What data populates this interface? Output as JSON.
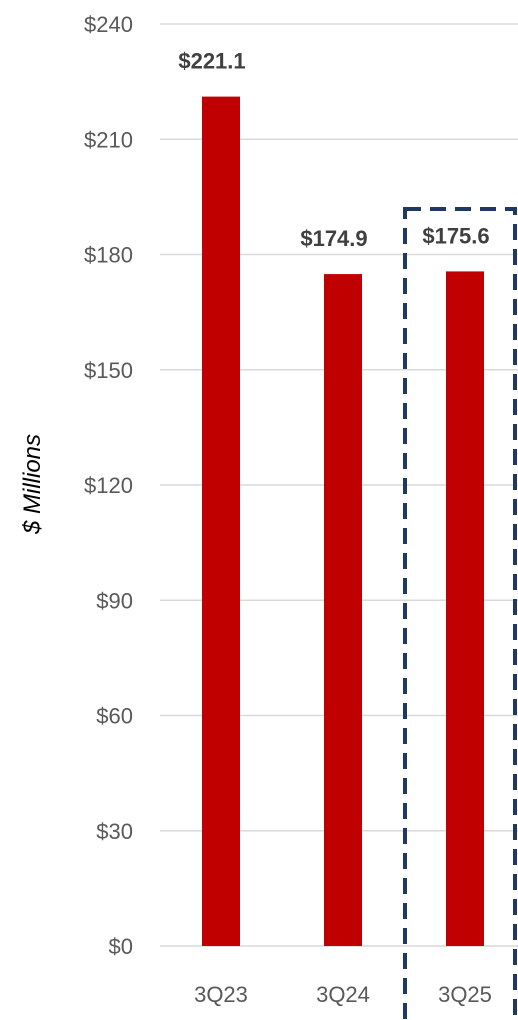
{
  "chart_data": {
    "type": "bar",
    "categories": [
      "3Q23",
      "3Q24",
      "3Q25"
    ],
    "values": [
      221.1,
      174.9,
      175.6
    ],
    "data_labels": [
      "$221.1",
      "$174.9",
      "$175.6"
    ],
    "ylabel": "$ Millions",
    "ylim": [
      0,
      240
    ],
    "yticks": [
      0,
      30,
      60,
      90,
      120,
      150,
      180,
      210,
      240
    ],
    "ytick_labels": [
      "$0",
      "$30",
      "$60",
      "$90",
      "$120",
      "$150",
      "$180",
      "$210",
      "$240"
    ],
    "grid": true,
    "highlighted_category": "3Q25",
    "colors": {
      "bar": "#c00000",
      "highlight_border": "#1f3864",
      "grid": "#d9d9d9"
    }
  }
}
